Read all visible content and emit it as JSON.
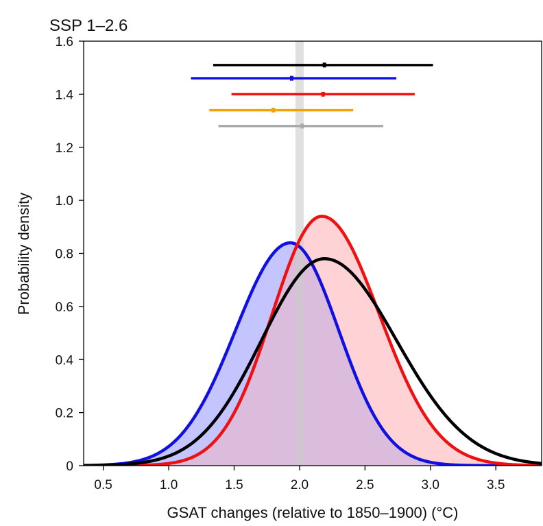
{
  "chart_data": {
    "type": "line",
    "title": "SSP 1–2.6",
    "xlabel": "GSAT changes (relative to 1850–1900) (°C)",
    "ylabel": "Probability density",
    "xlim": [
      0.35,
      3.85
    ],
    "ylim": [
      0,
      1.6
    ],
    "xticks": [
      0.5,
      1.0,
      1.5,
      2.0,
      2.5,
      3.0,
      3.5
    ],
    "xtick_labels": [
      "0.5",
      "1.0",
      "1.5",
      "2.0",
      "2.5",
      "3.0",
      "3.5"
    ],
    "yticks": [
      0,
      0.2,
      0.4,
      0.6,
      0.8,
      1.0,
      1.2,
      1.4,
      1.6
    ],
    "ytick_labels": [
      "0",
      "0.2",
      "0.4",
      "0.6",
      "0.8",
      "1.0",
      "1.2",
      "1.4",
      "1.6"
    ],
    "reference_line": {
      "x": 2.0,
      "color": "#cccccc"
    },
    "series": [
      {
        "name": "blue distribution",
        "color": "#1010e0",
        "fill": "#c4c4ff",
        "peak_x": 1.93,
        "peak_y": 0.84,
        "sigma_left": 0.42,
        "sigma_right": 0.37
      },
      {
        "name": "red distribution",
        "color": "#ee1111",
        "fill": "#ffd2d6",
        "peak_x": 2.17,
        "peak_y": 0.94,
        "sigma_left": 0.38,
        "sigma_right": 0.44
      },
      {
        "name": "black distribution",
        "color": "#000000",
        "fill": null,
        "peak_x": 2.19,
        "peak_y": 0.78,
        "sigma_left": 0.48,
        "sigma_right": 0.55
      }
    ],
    "overlap_fill": "#dcbcdc",
    "ranges": [
      {
        "name": "black range",
        "color": "#000000",
        "low": 1.34,
        "mid": 2.19,
        "high": 3.02,
        "y": 1.51
      },
      {
        "name": "blue range",
        "color": "#1010e0",
        "low": 1.17,
        "mid": 1.94,
        "high": 2.74,
        "y": 1.46
      },
      {
        "name": "red range",
        "color": "#ee1111",
        "low": 1.48,
        "mid": 2.18,
        "high": 2.88,
        "y": 1.4
      },
      {
        "name": "orange range",
        "color": "#f5a300",
        "low": 1.31,
        "mid": 1.8,
        "high": 2.41,
        "y": 1.34
      },
      {
        "name": "grey range",
        "color": "#aaaaaa",
        "low": 1.38,
        "mid": 2.02,
        "high": 2.64,
        "y": 1.28
      }
    ]
  }
}
